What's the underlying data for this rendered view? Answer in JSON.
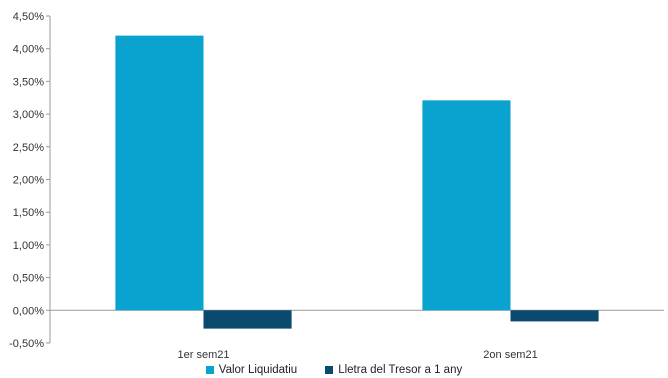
{
  "chart_data": {
    "type": "bar",
    "categories": [
      "1er sem21",
      "2on sem21"
    ],
    "series": [
      {
        "name": "Valor Liquidatiu",
        "color": "#0aa3cf",
        "values": [
          4.2,
          3.21
        ]
      },
      {
        "name": "Lletra del Tresor a 1 any",
        "color": "#0b4a6f",
        "values": [
          -0.28,
          -0.17
        ]
      }
    ],
    "yticks": [
      "-0,50%",
      "0,00%",
      "0,50%",
      "1,00%",
      "1,50%",
      "2,00%",
      "2,50%",
      "3,00%",
      "3,50%",
      "4,00%",
      "4,50%"
    ],
    "ylim": [
      -0.5,
      4.5
    ],
    "grid": false,
    "legend": "bottom",
    "title": "",
    "xlabel": "",
    "ylabel": ""
  }
}
